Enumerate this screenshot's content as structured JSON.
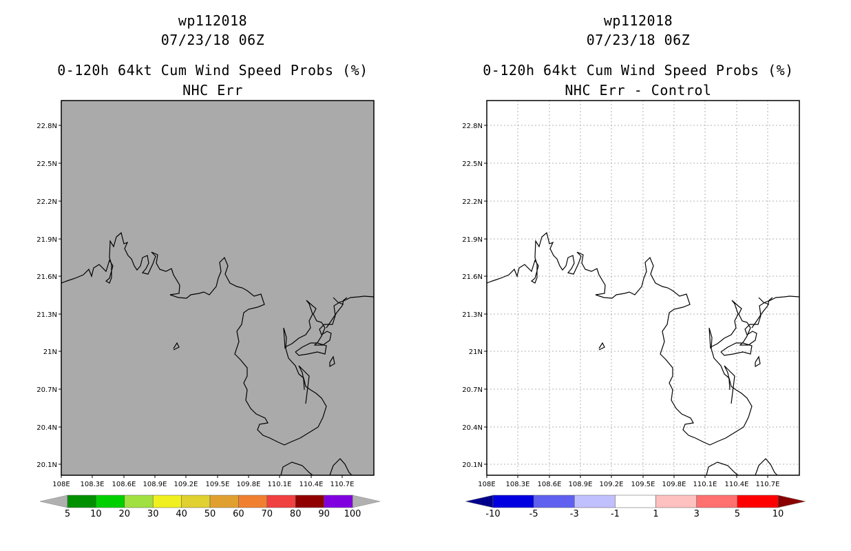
{
  "panels": [
    {
      "id": "left",
      "title_line1": "wp112018",
      "title_line2": "07/23/18 06Z",
      "title_line3": "0-120h 64kt Cum Wind Speed Probs (%)",
      "title_line4": "NHC Err",
      "map_fill": "#aaaaaa",
      "grid": false,
      "colorbar": {
        "colors": [
          "#009000",
          "#00d000",
          "#a0e040",
          "#f0f020",
          "#e0d030",
          "#e0a030",
          "#f08030",
          "#f04040",
          "#900000",
          "#8000e0"
        ],
        "labels": [
          "5",
          "10",
          "20",
          "30",
          "40",
          "50",
          "60",
          "70",
          "80",
          "90",
          "100"
        ],
        "end_color": "#b0b0b0"
      }
    },
    {
      "id": "right",
      "title_line1": "wp112018",
      "title_line2": "07/23/18 06Z",
      "title_line3": "0-120h 64kt Cum Wind Speed Probs (%)",
      "title_line4": "NHC Err - Control",
      "map_fill": "#ffffff",
      "grid": true,
      "colorbar": {
        "colors": [
          "#0000e0",
          "#6060f0",
          "#c0c0ff",
          "#ffffff",
          "#ffc0c0",
          "#ff7070",
          "#ff0000"
        ],
        "labels": [
          "-10",
          "-5",
          "-3",
          "-1",
          "1",
          "3",
          "5",
          "10"
        ],
        "end_color_left": "#00008a",
        "end_color_right": "#8a0000"
      }
    }
  ],
  "map": {
    "lon_labels": [
      "108E",
      "108.3E",
      "108.6E",
      "108.9E",
      "109.2E",
      "109.5E",
      "109.8E",
      "110.1E",
      "110.4E",
      "110.7E"
    ],
    "lat_labels": [
      "22.8N",
      "22.5N",
      "22.2N",
      "21.9N",
      "21.6N",
      "21.3N",
      "21N",
      "20.7N",
      "20.4N",
      "20.1N"
    ],
    "lon_range": [
      108.0,
      110.95
    ],
    "lat_range": [
      20.02,
      23.0
    ]
  }
}
